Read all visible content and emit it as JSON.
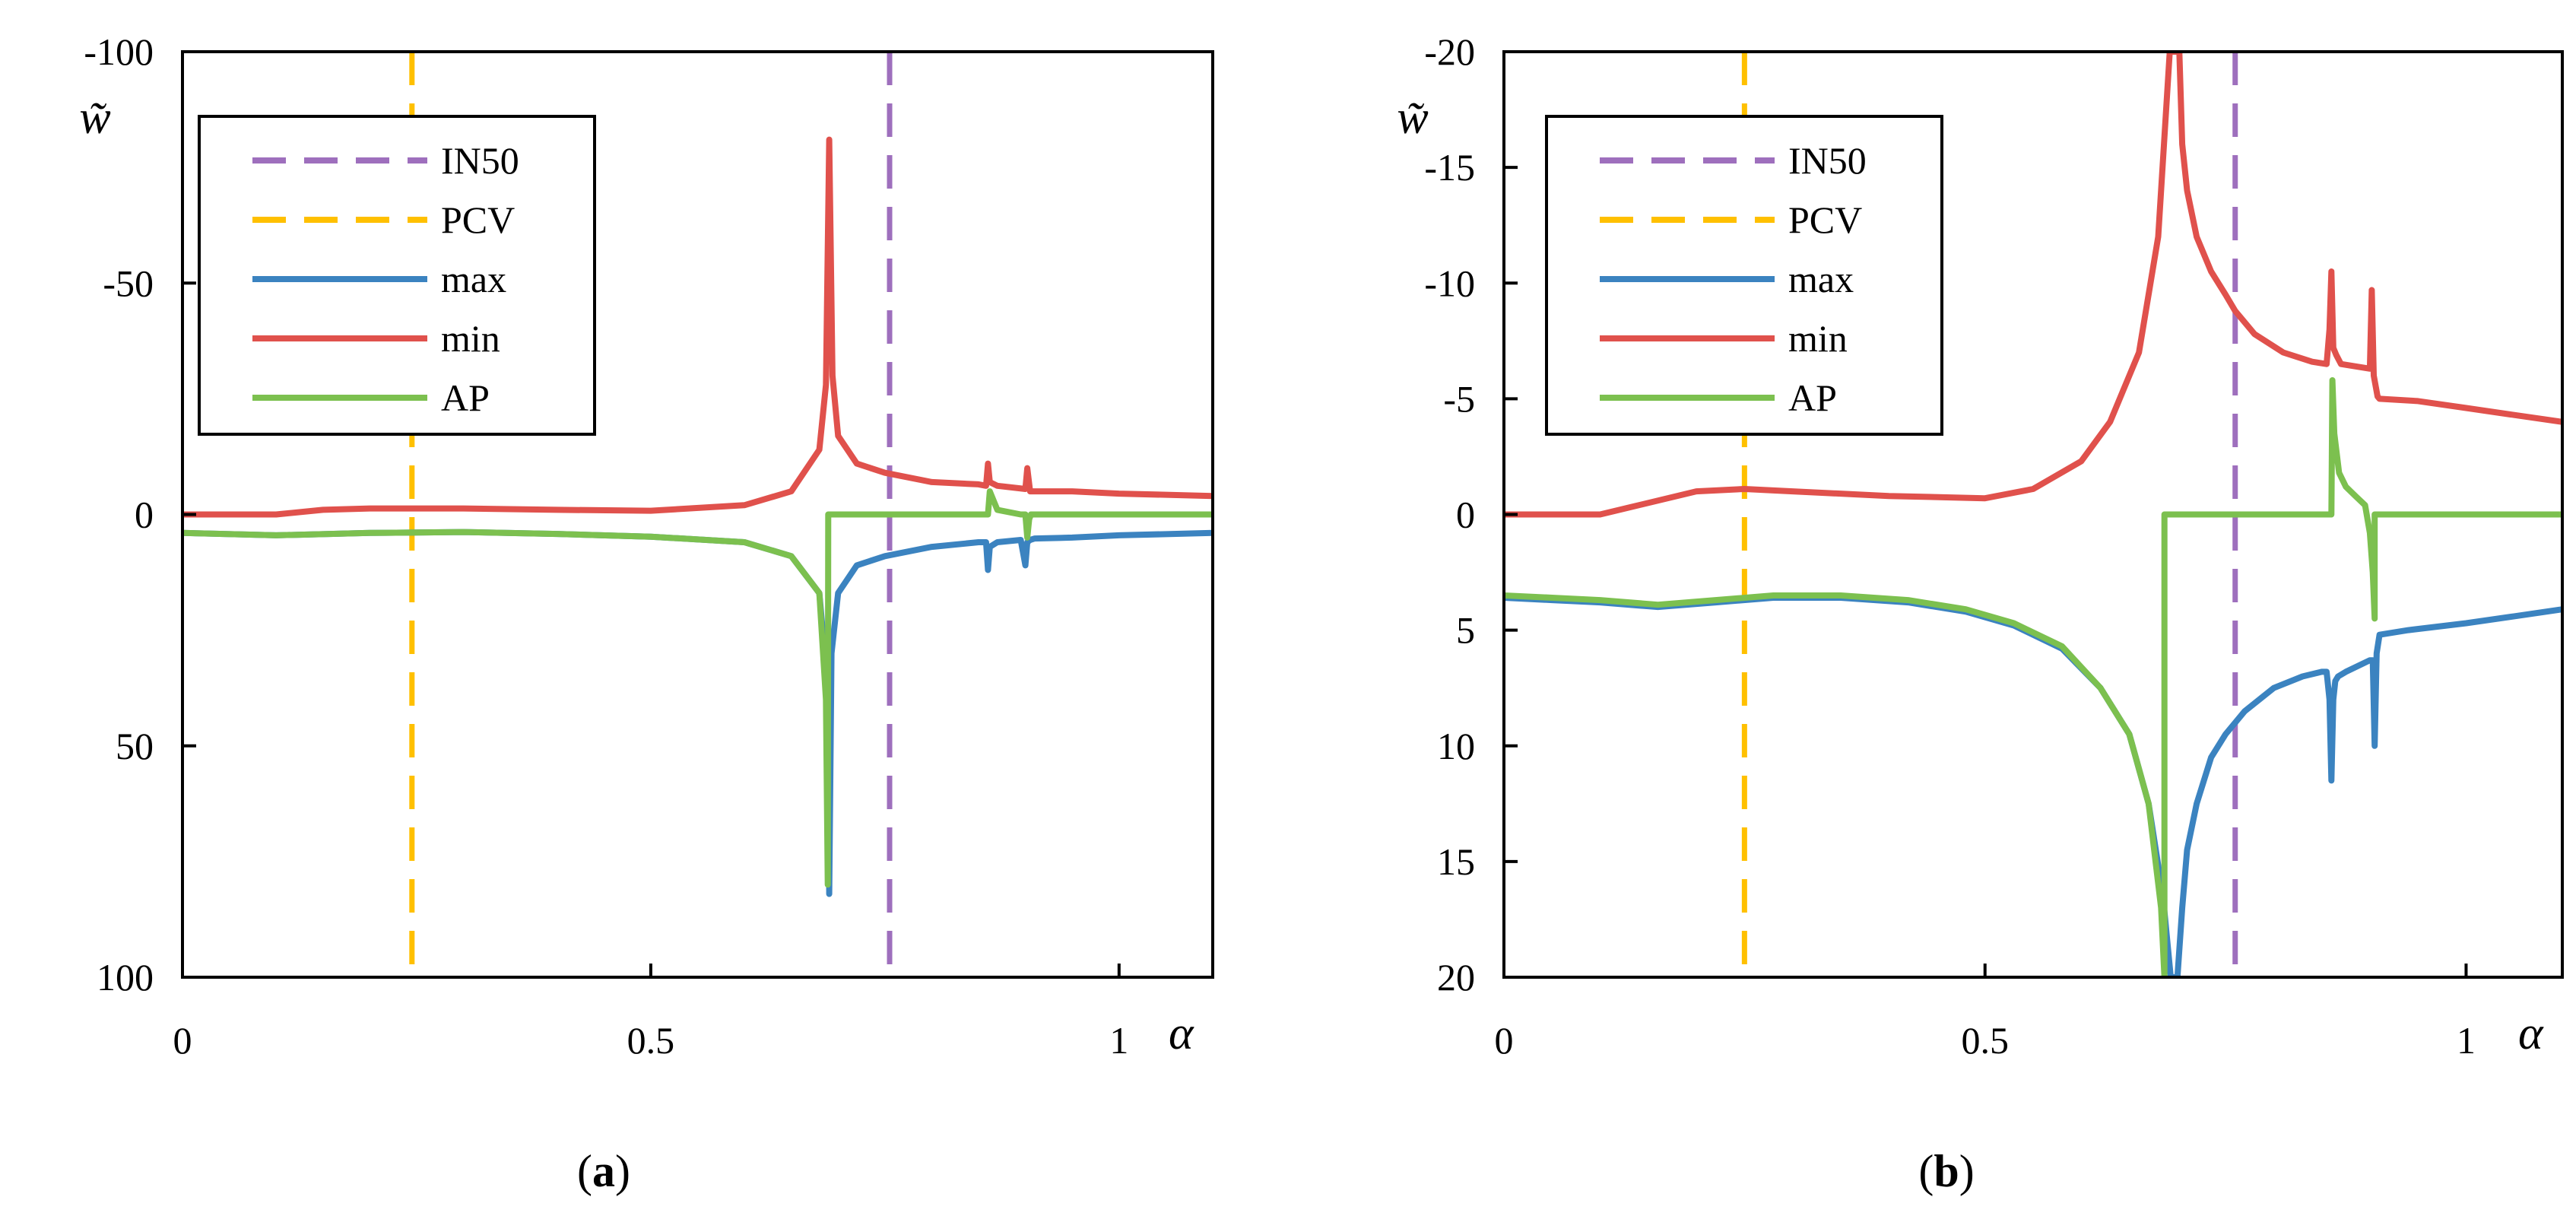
{
  "chart_data": [
    {
      "type": "line",
      "panel": "a",
      "caption": {
        "open": "(",
        "letter": "a",
        "close": ")"
      },
      "xlabel": "α",
      "ylabel": "w̃",
      "xlim": [
        0,
        1.1
      ],
      "ylim": [
        -100,
        100
      ],
      "y_inverted": true,
      "xticks": [
        0,
        0.5,
        1
      ],
      "xtick_labels": [
        "0",
        "0.5",
        "1"
      ],
      "yticks": [
        -100,
        -50,
        0,
        50,
        100
      ],
      "ytick_labels": [
        "-100",
        "-50",
        "0",
        "50",
        "100"
      ],
      "grid": false,
      "legend": {
        "placement": "top-left",
        "entries": [
          "IN50",
          "PCV",
          "max",
          "min",
          "AP"
        ]
      },
      "vlines": [
        {
          "name": "IN50",
          "x": 0.755,
          "color": "#9e6fbd",
          "style": "dashed"
        },
        {
          "name": "PCV",
          "x": 0.245,
          "color": "#ffc000",
          "style": "dashed"
        }
      ],
      "series": [
        {
          "name": "max",
          "color": "#3b83c0",
          "x": [
            0,
            0.1,
            0.2,
            0.3,
            0.4,
            0.5,
            0.6,
            0.65,
            0.68,
            0.69,
            0.6905,
            0.693,
            0.7,
            0.72,
            0.75,
            0.8,
            0.85,
            0.858,
            0.86,
            0.862,
            0.87,
            0.895,
            0.9,
            0.902,
            0.905,
            0.91,
            0.95,
            1.0,
            1.1
          ],
          "y": [
            4,
            4.5,
            4,
            3.8,
            4.2,
            4.8,
            6,
            9,
            17,
            40,
            82,
            30,
            17,
            11,
            9,
            7,
            6,
            6,
            12,
            7,
            6,
            5.5,
            11,
            6,
            5.5,
            5.2,
            5,
            4.5,
            4
          ]
        },
        {
          "name": "min",
          "color": "#e0514c",
          "x": [
            0,
            0.1,
            0.15,
            0.2,
            0.3,
            0.4,
            0.5,
            0.6,
            0.65,
            0.68,
            0.687,
            0.6905,
            0.694,
            0.7,
            0.72,
            0.75,
            0.8,
            0.85,
            0.858,
            0.86,
            0.862,
            0.87,
            0.9,
            0.902,
            0.905,
            0.95,
            1.0,
            1.1
          ],
          "y": [
            0,
            0,
            -1,
            -1.3,
            -1.3,
            -1,
            -0.8,
            -2,
            -5,
            -14,
            -28,
            -81,
            -30,
            -17,
            -11,
            -9,
            -7,
            -6.5,
            -6.2,
            -11,
            -7,
            -6.2,
            -5.5,
            -10,
            -5,
            -5,
            -4.5,
            -4
          ]
        },
        {
          "name": "AP",
          "color": "#7cc04f",
          "x": [
            0,
            0.1,
            0.2,
            0.3,
            0.4,
            0.5,
            0.6,
            0.65,
            0.68,
            0.687,
            0.689,
            0.6895,
            0.69,
            0.8,
            0.855,
            0.86,
            0.862,
            0.87,
            0.895,
            0.9,
            0.902,
            0.904,
            0.906,
            0.95,
            1.1
          ],
          "y": [
            4,
            4.5,
            4,
            3.8,
            4.2,
            4.8,
            6,
            9,
            17,
            40,
            80,
            0,
            0,
            0,
            0,
            0,
            -5,
            -1,
            0,
            0,
            5,
            1,
            0,
            0,
            0
          ]
        }
      ]
    },
    {
      "type": "line",
      "panel": "b",
      "caption": {
        "open": "(",
        "letter": "b",
        "close": ")"
      },
      "xlabel": "α",
      "ylabel": "w̃",
      "xlim": [
        0,
        1.1
      ],
      "ylim": [
        -20,
        20
      ],
      "y_inverted": true,
      "xticks": [
        0,
        0.5,
        1
      ],
      "xtick_labels": [
        "0",
        "0.5",
        "1"
      ],
      "yticks": [
        -20,
        -15,
        -10,
        -5,
        0,
        5,
        10,
        15,
        20
      ],
      "ytick_labels": [
        "-20",
        "-15",
        "-10",
        "-5",
        "0",
        "5",
        "10",
        "15",
        "20"
      ],
      "grid": false,
      "legend": {
        "placement": "top-left",
        "entries": [
          "IN50",
          "PCV",
          "max",
          "min",
          "AP"
        ]
      },
      "vlines": [
        {
          "name": "IN50",
          "x": 0.76,
          "color": "#9e6fbd",
          "style": "dashed"
        },
        {
          "name": "PCV",
          "x": 0.25,
          "color": "#ffc000",
          "style": "dashed"
        }
      ],
      "series": [
        {
          "name": "max",
          "color": "#3b83c0",
          "x": [
            0,
            0.05,
            0.1,
            0.16,
            0.22,
            0.28,
            0.35,
            0.42,
            0.48,
            0.53,
            0.58,
            0.62,
            0.65,
            0.67,
            0.685,
            0.693,
            0.7,
            0.705,
            0.71,
            0.72,
            0.735,
            0.75,
            0.77,
            0.8,
            0.83,
            0.85,
            0.855,
            0.858,
            0.86,
            0.862,
            0.864,
            0.867,
            0.875,
            0.9,
            0.903,
            0.905,
            0.907,
            0.91,
            0.94,
            1.0,
            1.05,
            1.1
          ],
          "y": [
            3.6,
            3.7,
            3.8,
            4.0,
            3.8,
            3.6,
            3.6,
            3.8,
            4.2,
            4.8,
            5.8,
            7.5,
            9.5,
            12.5,
            16.5,
            20,
            20,
            17,
            14.5,
            12.5,
            10.5,
            9.5,
            8.5,
            7.5,
            7.0,
            6.8,
            6.8,
            8,
            11.5,
            8,
            7.2,
            7.0,
            6.8,
            6.3,
            6.3,
            10,
            6,
            5.2,
            5.0,
            4.7,
            4.4,
            4.1
          ]
        },
        {
          "name": "min",
          "color": "#e0514c",
          "x": [
            0,
            0.05,
            0.1,
            0.13,
            0.2,
            0.25,
            0.3,
            0.4,
            0.5,
            0.55,
            0.6,
            0.63,
            0.66,
            0.68,
            0.692,
            0.7,
            0.702,
            0.705,
            0.71,
            0.72,
            0.735,
            0.75,
            0.76,
            0.78,
            0.81,
            0.84,
            0.855,
            0.858,
            0.86,
            0.862,
            0.865,
            0.87,
            0.9,
            0.902,
            0.904,
            0.908,
            0.91,
            0.95,
            1.0,
            1.05,
            1.1
          ],
          "y": [
            0,
            0,
            0,
            -0.3,
            -1.0,
            -1.1,
            -1.0,
            -0.8,
            -0.7,
            -1.1,
            -2.3,
            -4,
            -7,
            -12,
            -20,
            -20,
            -20,
            -16,
            -14,
            -12,
            -10.5,
            -9.5,
            -8.8,
            -7.8,
            -7.0,
            -6.6,
            -6.5,
            -8,
            -10.5,
            -7.2,
            -6.9,
            -6.5,
            -6.3,
            -9.7,
            -6,
            -5.1,
            -5.0,
            -4.9,
            -4.6,
            -4.3,
            -4.0
          ]
        },
        {
          "name": "AP",
          "color": "#7cc04f",
          "x": [
            0,
            0.05,
            0.1,
            0.16,
            0.22,
            0.28,
            0.35,
            0.42,
            0.48,
            0.53,
            0.58,
            0.62,
            0.65,
            0.67,
            0.683,
            0.6865,
            0.6865,
            0.69,
            0.855,
            0.86,
            0.861,
            0.863,
            0.868,
            0.875,
            0.885,
            0.895,
            0.9,
            0.903,
            0.905,
            0.905,
            0.95,
            1.1
          ],
          "y": [
            3.5,
            3.6,
            3.7,
            3.9,
            3.7,
            3.5,
            3.5,
            3.7,
            4.1,
            4.7,
            5.7,
            7.5,
            9.5,
            12.5,
            17,
            20,
            0,
            0,
            0,
            0,
            -5.8,
            -3.5,
            -1.8,
            -1.2,
            -0.8,
            -0.4,
            0.8,
            2.5,
            4.5,
            0,
            0,
            0
          ]
        }
      ]
    }
  ]
}
